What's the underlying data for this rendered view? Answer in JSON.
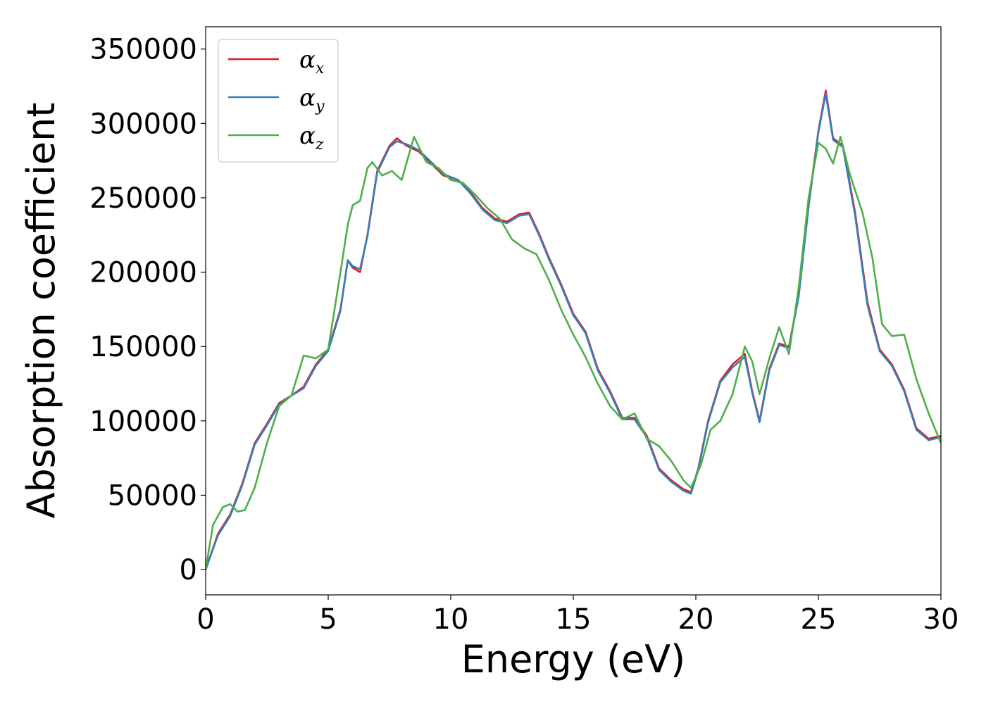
{
  "chart_data": {
    "type": "line",
    "title": "",
    "xlabel": "Energy (eV)",
    "ylabel": "Absorption coefficient",
    "xlim": [
      0,
      30
    ],
    "ylim": [
      -17000,
      365000
    ],
    "xticks": [
      0,
      5,
      10,
      15,
      20,
      25,
      30
    ],
    "yticks": [
      0,
      50000,
      100000,
      150000,
      200000,
      250000,
      300000,
      350000
    ],
    "grid": false,
    "legend_position": "top-left",
    "series": [
      {
        "name": "α_x",
        "label_main": "α",
        "label_sub": "x",
        "color": "#e41a1c",
        "x": [
          0,
          0.5,
          1,
          1.5,
          2,
          2.5,
          3,
          3.5,
          4,
          4.5,
          5,
          5.5,
          5.8,
          6,
          6.3,
          6.6,
          7,
          7.5,
          7.8,
          8.2,
          8.7,
          9.2,
          9.7,
          10.3,
          10.8,
          11.3,
          11.8,
          12.3,
          12.8,
          13.2,
          13.6,
          14,
          14.5,
          15,
          15.5,
          16,
          16.5,
          17,
          17.5,
          18,
          18.5,
          19,
          19.5,
          19.8,
          20.1,
          20.5,
          21,
          21.5,
          22,
          22.3,
          22.6,
          23,
          23.4,
          23.8,
          24.2,
          24.6,
          25,
          25.3,
          25.6,
          26,
          26.5,
          27,
          27.5,
          28,
          28.5,
          29,
          29.5,
          30
        ],
        "y": [
          0,
          24000,
          37000,
          58000,
          85000,
          98000,
          112000,
          117000,
          123000,
          138000,
          148000,
          175000,
          208000,
          203000,
          200000,
          225000,
          268000,
          285000,
          290000,
          285000,
          281000,
          273000,
          265000,
          262000,
          254000,
          243000,
          236000,
          234000,
          239000,
          240000,
          226000,
          210000,
          192000,
          172000,
          160000,
          135000,
          120000,
          102000,
          102000,
          90000,
          68000,
          60000,
          54000,
          52000,
          68000,
          100000,
          127000,
          138000,
          145000,
          120000,
          100000,
          135000,
          152000,
          150000,
          185000,
          245000,
          295000,
          322000,
          290000,
          285000,
          240000,
          180000,
          148000,
          138000,
          121000,
          95000,
          88000,
          90000
        ]
      },
      {
        "name": "α_y",
        "label_main": "α",
        "label_sub": "y",
        "color": "#377eb8",
        "x": [
          0,
          0.5,
          1,
          1.5,
          2,
          2.5,
          3,
          3.5,
          4,
          4.5,
          5,
          5.5,
          5.8,
          6,
          6.3,
          6.6,
          7,
          7.5,
          7.8,
          8.2,
          8.7,
          9.2,
          9.7,
          10.3,
          10.8,
          11.3,
          11.8,
          12.3,
          12.8,
          13.2,
          13.6,
          14,
          14.5,
          15,
          15.5,
          16,
          16.5,
          17,
          17.5,
          18,
          18.5,
          19,
          19.5,
          19.8,
          20.1,
          20.5,
          21,
          21.5,
          22,
          22.3,
          22.6,
          23,
          23.4,
          23.8,
          24.2,
          24.6,
          25,
          25.3,
          25.6,
          26,
          26.5,
          27,
          27.5,
          28,
          28.5,
          29,
          29.5,
          30
        ],
        "y": [
          0,
          23000,
          36000,
          57000,
          84000,
          97000,
          111000,
          117000,
          122000,
          137000,
          147000,
          174000,
          208000,
          204000,
          202000,
          224000,
          267000,
          284000,
          288000,
          286000,
          282000,
          274000,
          266000,
          262000,
          253000,
          242000,
          235000,
          233000,
          238000,
          239000,
          225000,
          209000,
          191000,
          171000,
          159000,
          134000,
          119000,
          101000,
          101000,
          89000,
          67000,
          59000,
          53000,
          51000,
          67000,
          99000,
          126000,
          136000,
          143000,
          119000,
          99000,
          134000,
          151000,
          149000,
          184000,
          244000,
          294000,
          320000,
          289000,
          284000,
          238000,
          178000,
          147000,
          137000,
          120000,
          94000,
          87000,
          89000
        ]
      },
      {
        "name": "α_z",
        "label_main": "α",
        "label_sub": "z",
        "color": "#4daf4a",
        "x": [
          0,
          0.3,
          0.7,
          1,
          1.3,
          1.6,
          2,
          2.5,
          3,
          3.5,
          4,
          4.5,
          5,
          5.5,
          5.8,
          6,
          6.3,
          6.6,
          6.8,
          7.2,
          7.6,
          8,
          8.5,
          9,
          9.5,
          10,
          10.5,
          11,
          11.5,
          12,
          12.5,
          13,
          13.5,
          14,
          14.5,
          15,
          15.5,
          16,
          16.5,
          17,
          17.5,
          18,
          18.5,
          19,
          19.5,
          19.8,
          20.2,
          20.6,
          21,
          21.5,
          22,
          22.3,
          22.6,
          23,
          23.4,
          23.8,
          24.2,
          24.6,
          25,
          25.3,
          25.6,
          25.9,
          26.3,
          26.8,
          27.2,
          27.6,
          28,
          28.5,
          29,
          29.5,
          30
        ],
        "y": [
          0,
          30000,
          42000,
          44000,
          39000,
          40000,
          55000,
          85000,
          110000,
          117000,
          144000,
          142000,
          148000,
          200000,
          232000,
          245000,
          248000,
          270000,
          274000,
          265000,
          268000,
          262000,
          291000,
          274000,
          270000,
          262000,
          260000,
          252000,
          243000,
          236000,
          222000,
          216000,
          212000,
          195000,
          175000,
          158000,
          143000,
          125000,
          110000,
          101000,
          105000,
          88000,
          83000,
          73000,
          60000,
          55000,
          70000,
          94000,
          100000,
          118000,
          150000,
          140000,
          118000,
          142000,
          163000,
          145000,
          190000,
          250000,
          287000,
          283000,
          273000,
          291000,
          265000,
          240000,
          210000,
          165000,
          157000,
          158000,
          128000,
          105000,
          85000
        ]
      }
    ]
  }
}
